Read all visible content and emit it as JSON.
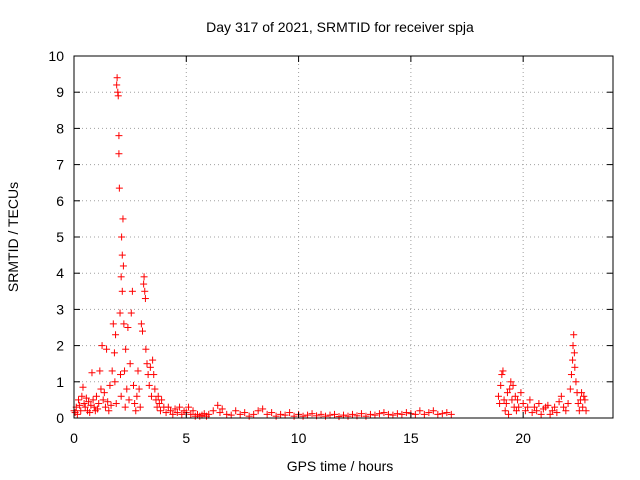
{
  "chart_data": {
    "type": "scatter",
    "title": "Day 317 of 2021, SRMTID for receiver spja",
    "xlabel": "GPS time / hours",
    "ylabel": "SRMTID / TECUs",
    "xlim": [
      0,
      24
    ],
    "ylim": [
      0,
      10
    ],
    "xticks": [
      0,
      5,
      10,
      15,
      20
    ],
    "yticks": [
      0,
      1,
      2,
      3,
      4,
      5,
      6,
      7,
      8,
      9,
      10
    ],
    "x_tick_labels": [
      "0",
      "5",
      "10",
      "15",
      "20"
    ],
    "y_tick_labels": [
      "0",
      "1",
      "2",
      "3",
      "4",
      "5",
      "6",
      "7",
      "8",
      "9",
      "10"
    ],
    "grid": true,
    "marker": "+",
    "color": "#ff0000",
    "series": [
      {
        "name": "spja",
        "points": [
          [
            0.0,
            0.2
          ],
          [
            0.05,
            0.15
          ],
          [
            0.1,
            0.3
          ],
          [
            0.15,
            0.1
          ],
          [
            0.2,
            0.5
          ],
          [
            0.25,
            0.35
          ],
          [
            0.3,
            0.2
          ],
          [
            0.35,
            0.6
          ],
          [
            0.4,
            0.85
          ],
          [
            0.45,
            0.4
          ],
          [
            0.5,
            0.3
          ],
          [
            0.55,
            0.55
          ],
          [
            0.6,
            0.2
          ],
          [
            0.65,
            0.45
          ],
          [
            0.7,
            0.15
          ],
          [
            0.75,
            0.35
          ],
          [
            0.8,
            1.25
          ],
          [
            0.85,
            0.5
          ],
          [
            0.9,
            0.3
          ],
          [
            0.95,
            0.2
          ],
          [
            1.0,
            0.6
          ],
          [
            1.05,
            0.25
          ],
          [
            1.1,
            0.4
          ],
          [
            1.15,
            1.3
          ],
          [
            1.2,
            0.8
          ],
          [
            1.25,
            2.0
          ],
          [
            1.3,
            0.5
          ],
          [
            1.35,
            0.7
          ],
          [
            1.4,
            0.3
          ],
          [
            1.45,
            1.9
          ],
          [
            1.5,
            0.45
          ],
          [
            1.55,
            0.2
          ],
          [
            1.6,
            0.9
          ],
          [
            1.65,
            0.35
          ],
          [
            1.7,
            1.3
          ],
          [
            1.75,
            2.6
          ],
          [
            1.8,
            1.8
          ],
          [
            1.82,
            1.0
          ],
          [
            1.85,
            2.3
          ],
          [
            1.88,
            0.4
          ],
          [
            1.9,
            9.2
          ],
          [
            1.92,
            9.4
          ],
          [
            1.95,
            9.0
          ],
          [
            1.97,
            8.9
          ],
          [
            2.0,
            7.8
          ],
          [
            2.0,
            7.3
          ],
          [
            2.02,
            6.35
          ],
          [
            2.05,
            2.9
          ],
          [
            2.07,
            1.2
          ],
          [
            2.1,
            0.6
          ],
          [
            2.1,
            3.9
          ],
          [
            2.12,
            5.0
          ],
          [
            2.15,
            4.5
          ],
          [
            2.15,
            3.5
          ],
          [
            2.18,
            5.5
          ],
          [
            2.2,
            4.2
          ],
          [
            2.22,
            2.6
          ],
          [
            2.25,
            1.3
          ],
          [
            2.28,
            0.3
          ],
          [
            2.3,
            1.9
          ],
          [
            2.35,
            0.8
          ],
          [
            2.4,
            2.5
          ],
          [
            2.45,
            0.5
          ],
          [
            2.5,
            1.5
          ],
          [
            2.55,
            2.9
          ],
          [
            2.6,
            3.5
          ],
          [
            2.65,
            0.9
          ],
          [
            2.7,
            0.4
          ],
          [
            2.75,
            0.2
          ],
          [
            2.8,
            0.6
          ],
          [
            2.85,
            1.3
          ],
          [
            2.9,
            0.8
          ],
          [
            2.95,
            0.3
          ],
          [
            3.0,
            2.6
          ],
          [
            3.05,
            2.4
          ],
          [
            3.1,
            3.7
          ],
          [
            3.12,
            3.9
          ],
          [
            3.15,
            3.5
          ],
          [
            3.18,
            3.3
          ],
          [
            3.2,
            1.9
          ],
          [
            3.25,
            1.5
          ],
          [
            3.3,
            1.2
          ],
          [
            3.35,
            0.9
          ],
          [
            3.4,
            1.4
          ],
          [
            3.45,
            0.6
          ],
          [
            3.5,
            1.6
          ],
          [
            3.55,
            1.2
          ],
          [
            3.6,
            0.8
          ],
          [
            3.65,
            0.5
          ],
          [
            3.7,
            0.3
          ],
          [
            3.75,
            0.6
          ],
          [
            3.8,
            0.4
          ],
          [
            3.85,
            0.2
          ],
          [
            3.9,
            0.5
          ],
          [
            4.0,
            0.3
          ],
          [
            4.1,
            0.15
          ],
          [
            4.2,
            0.3
          ],
          [
            4.3,
            0.2
          ],
          [
            4.4,
            0.1
          ],
          [
            4.5,
            0.25
          ],
          [
            4.6,
            0.15
          ],
          [
            4.7,
            0.3
          ],
          [
            4.8,
            0.1
          ],
          [
            4.9,
            0.2
          ],
          [
            5.0,
            0.15
          ],
          [
            5.1,
            0.3
          ],
          [
            5.2,
            0.1
          ],
          [
            5.3,
            0.2
          ],
          [
            5.4,
            0.05
          ],
          [
            5.5,
            0.1
          ],
          [
            5.6,
            0.05
          ],
          [
            5.7,
            0.08
          ],
          [
            5.8,
            0.12
          ],
          [
            5.9,
            0.05
          ],
          [
            6.0,
            0.1
          ],
          [
            6.2,
            0.2
          ],
          [
            6.4,
            0.35
          ],
          [
            6.5,
            0.15
          ],
          [
            6.6,
            0.25
          ],
          [
            6.8,
            0.1
          ],
          [
            7.0,
            0.08
          ],
          [
            7.2,
            0.2
          ],
          [
            7.4,
            0.1
          ],
          [
            7.6,
            0.15
          ],
          [
            7.8,
            0.05
          ],
          [
            8.0,
            0.1
          ],
          [
            8.2,
            0.2
          ],
          [
            8.4,
            0.25
          ],
          [
            8.6,
            0.1
          ],
          [
            8.8,
            0.15
          ],
          [
            9.0,
            0.05
          ],
          [
            9.2,
            0.1
          ],
          [
            9.4,
            0.08
          ],
          [
            9.6,
            0.15
          ],
          [
            9.8,
            0.05
          ],
          [
            10.0,
            0.1
          ],
          [
            10.2,
            0.05
          ],
          [
            10.4,
            0.08
          ],
          [
            10.6,
            0.12
          ],
          [
            10.8,
            0.06
          ],
          [
            11.0,
            0.1
          ],
          [
            11.2,
            0.05
          ],
          [
            11.4,
            0.08
          ],
          [
            11.6,
            0.1
          ],
          [
            11.8,
            0.04
          ],
          [
            12.0,
            0.08
          ],
          [
            12.2,
            0.05
          ],
          [
            12.4,
            0.1
          ],
          [
            12.6,
            0.06
          ],
          [
            12.8,
            0.12
          ],
          [
            13.0,
            0.05
          ],
          [
            13.2,
            0.1
          ],
          [
            13.4,
            0.08
          ],
          [
            13.6,
            0.12
          ],
          [
            13.8,
            0.15
          ],
          [
            14.0,
            0.1
          ],
          [
            14.2,
            0.08
          ],
          [
            14.4,
            0.12
          ],
          [
            14.6,
            0.1
          ],
          [
            14.8,
            0.15
          ],
          [
            15.0,
            0.12
          ],
          [
            15.2,
            0.1
          ],
          [
            15.4,
            0.2
          ],
          [
            15.6,
            0.1
          ],
          [
            15.8,
            0.15
          ],
          [
            16.0,
            0.2
          ],
          [
            16.2,
            0.1
          ],
          [
            16.4,
            0.12
          ],
          [
            16.6,
            0.15
          ],
          [
            16.8,
            0.1
          ],
          [
            18.9,
            0.6
          ],
          [
            18.95,
            0.4
          ],
          [
            19.0,
            0.9
          ],
          [
            19.05,
            1.2
          ],
          [
            19.1,
            1.3
          ],
          [
            19.15,
            0.5
          ],
          [
            19.2,
            0.2
          ],
          [
            19.25,
            0.4
          ],
          [
            19.3,
            0.7
          ],
          [
            19.35,
            0.1
          ],
          [
            19.4,
            0.8
          ],
          [
            19.45,
            1.0
          ],
          [
            19.5,
            0.5
          ],
          [
            19.55,
            0.9
          ],
          [
            19.6,
            0.3
          ],
          [
            19.65,
            0.6
          ],
          [
            19.7,
            0.2
          ],
          [
            19.75,
            0.5
          ],
          [
            19.8,
            0.3
          ],
          [
            19.9,
            0.7
          ],
          [
            20.0,
            0.4
          ],
          [
            20.1,
            0.2
          ],
          [
            20.2,
            0.3
          ],
          [
            20.3,
            0.5
          ],
          [
            20.4,
            0.15
          ],
          [
            20.5,
            0.3
          ],
          [
            20.6,
            0.2
          ],
          [
            20.7,
            0.4
          ],
          [
            20.8,
            0.1
          ],
          [
            20.9,
            0.25
          ],
          [
            21.0,
            0.3
          ],
          [
            21.1,
            0.35
          ],
          [
            21.2,
            0.1
          ],
          [
            21.3,
            0.2
          ],
          [
            21.4,
            0.3
          ],
          [
            21.5,
            0.15
          ],
          [
            21.6,
            0.45
          ],
          [
            21.7,
            0.6
          ],
          [
            21.8,
            0.3
          ],
          [
            21.9,
            0.2
          ],
          [
            22.0,
            0.4
          ],
          [
            22.1,
            0.8
          ],
          [
            22.15,
            1.2
          ],
          [
            22.2,
            1.6
          ],
          [
            22.22,
            2.0
          ],
          [
            22.25,
            2.3
          ],
          [
            22.28,
            1.8
          ],
          [
            22.3,
            1.4
          ],
          [
            22.35,
            1.0
          ],
          [
            22.4,
            0.7
          ],
          [
            22.45,
            0.4
          ],
          [
            22.5,
            0.2
          ],
          [
            22.55,
            0.5
          ],
          [
            22.6,
            0.7
          ],
          [
            22.65,
            0.3
          ],
          [
            22.7,
            0.6
          ],
          [
            22.75,
            0.5
          ],
          [
            22.8,
            0.2
          ]
        ]
      }
    ]
  }
}
